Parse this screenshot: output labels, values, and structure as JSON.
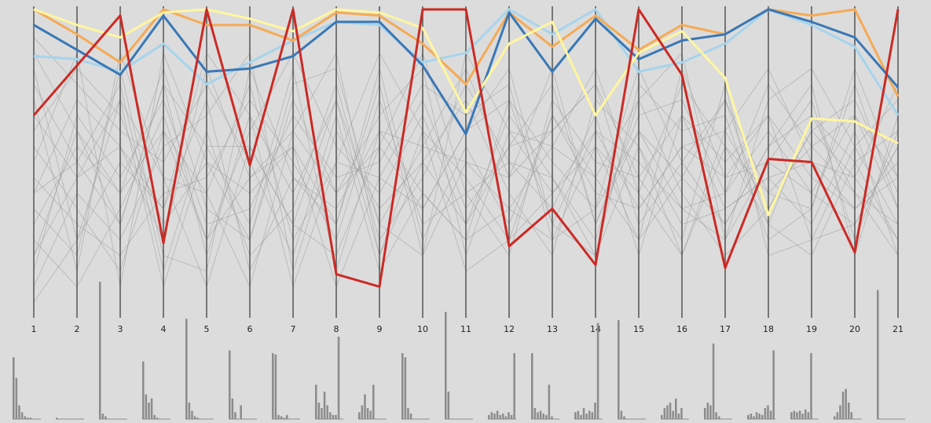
{
  "chart_data": {
    "type": "parallel",
    "categories": [
      "1",
      "2",
      "3",
      "4",
      "5",
      "6",
      "7",
      "8",
      "9",
      "10",
      "11",
      "12",
      "13",
      "14",
      "15",
      "16",
      "17",
      "18",
      "19",
      "20",
      "21"
    ],
    "ylim": [
      0,
      100
    ],
    "background_series": {
      "color": "#9a9a9a",
      "lines": [
        [
          20,
          45,
          70,
          10,
          55,
          30,
          80,
          15,
          60,
          40,
          25,
          70,
          50,
          35,
          60,
          45,
          30,
          55,
          65,
          40,
          30
        ],
        [
          85,
          60,
          30,
          75,
          20,
          65,
          40,
          70,
          30,
          55,
          80,
          45,
          60,
          75,
          30,
          50,
          70,
          40,
          55,
          65,
          45
        ],
        [
          5,
          25,
          50,
          35,
          70,
          15,
          45,
          30,
          75,
          20,
          50,
          35,
          25,
          55,
          40,
          20,
          55,
          30,
          20,
          50,
          25
        ],
        [
          55,
          35,
          15,
          60,
          40,
          75,
          25,
          50,
          45,
          70,
          35,
          55,
          75,
          30,
          65,
          70,
          40,
          60,
          40,
          30,
          55
        ],
        [
          40,
          70,
          55,
          25,
          80,
          45,
          60,
          85,
          20,
          60,
          45,
          25,
          40,
          60,
          50,
          35,
          25,
          70,
          80,
          55,
          70
        ],
        [
          70,
          15,
          85,
          45,
          10,
          55,
          30,
          20,
          55,
          35,
          60,
          80,
          30,
          20,
          75,
          60,
          65,
          25,
          35,
          75,
          35
        ],
        [
          30,
          55,
          40,
          80,
          35,
          25,
          70,
          40,
          65,
          80,
          20,
          60,
          55,
          45,
          25,
          80,
          45,
          50,
          70,
          25,
          60
        ],
        [
          10,
          40,
          25,
          55,
          65,
          85,
          15,
          60,
          35,
          50,
          70,
          40,
          20,
          70,
          55,
          30,
          35,
          45,
          30,
          60,
          20
        ],
        [
          60,
          80,
          65,
          30,
          50,
          40,
          55,
          30,
          80,
          25,
          55,
          30,
          65,
          40,
          35,
          55,
          60,
          80,
          50,
          45,
          75
        ],
        [
          25,
          10,
          35,
          65,
          25,
          60,
          85,
          55,
          40,
          65,
          30,
          65,
          45,
          25,
          70,
          40,
          20,
          35,
          60,
          70,
          40
        ],
        [
          75,
          50,
          75,
          15,
          60,
          20,
          35,
          75,
          25,
          45,
          75,
          50,
          35,
          65,
          20,
          65,
          50,
          65,
          45,
          35,
          50
        ],
        [
          45,
          30,
          20,
          40,
          45,
          70,
          50,
          25,
          70,
          30,
          40,
          20,
          70,
          50,
          45,
          25,
          75,
          20,
          25,
          55,
          30
        ],
        [
          15,
          65,
          45,
          70,
          30,
          35,
          65,
          45,
          50,
          75,
          65,
          75,
          25,
          35,
          80,
          50,
          30,
          55,
          75,
          20,
          65
        ],
        [
          90,
          75,
          60,
          50,
          75,
          50,
          20,
          65,
          15,
          40,
          25,
          35,
          55,
          80,
          40,
          75,
          55,
          40,
          35,
          80,
          45
        ],
        [
          35,
          20,
          80,
          20,
          15,
          80,
          45,
          35,
          60,
          55,
          50,
          45,
          80,
          30,
          60,
          35,
          40,
          75,
          55,
          40,
          20
        ],
        [
          50,
          85,
          10,
          85,
          50,
          25,
          75,
          80,
          30,
          20,
          85,
          60,
          40,
          55,
          25,
          45,
          70,
          30,
          65,
          50,
          60
        ],
        [
          65,
          45,
          55,
          35,
          85,
          65,
          10,
          50,
          85,
          60,
          15,
          25,
          65,
          45,
          70,
          85,
          25,
          50,
          40,
          65,
          35
        ],
        [
          20,
          60,
          40,
          60,
          25,
          45,
          55,
          10,
          45,
          35,
          60,
          70,
          30,
          60,
          35,
          55,
          45,
          65,
          25,
          30,
          55
        ],
        [
          80,
          25,
          70,
          45,
          40,
          10,
          60,
          40,
          55,
          85,
          40,
          50,
          45,
          20,
          55,
          20,
          60,
          35,
          60,
          45,
          25
        ],
        [
          40,
          50,
          30,
          75,
          55,
          55,
          30,
          70,
          20,
          50,
          30,
          55,
          60,
          75,
          45,
          65,
          35,
          45,
          50,
          35,
          45
        ]
      ]
    },
    "series": [
      {
        "color": "#a6d4ec",
        "values": [
          84,
          83,
          79,
          88,
          75,
          82,
          89,
          95,
          94,
          82,
          85,
          99,
          91,
          99,
          79,
          82,
          88,
          99,
          94,
          87,
          65
        ]
      },
      {
        "color": "#f5aa55",
        "values": [
          99,
          91,
          82,
          99,
          94,
          94,
          89,
          98,
          97,
          88,
          75,
          98,
          87,
          97,
          86,
          94,
          91,
          99,
          97,
          99,
          71
        ]
      },
      {
        "color": "#3a78b5",
        "values": [
          94,
          86,
          78,
          97,
          79,
          80,
          84,
          95,
          95,
          81,
          59,
          98,
          79,
          96,
          83,
          89,
          91,
          99,
          95,
          90,
          74
        ]
      },
      {
        "color": "#fff6a0",
        "values": [
          99,
          94,
          90,
          98,
          99,
          96,
          92,
          99,
          98,
          93,
          66,
          88,
          95,
          65,
          85,
          92,
          77,
          33,
          64,
          63,
          56
        ]
      },
      {
        "color": "#cc2a25",
        "values": [
          65,
          81,
          97,
          24,
          99,
          49,
          99,
          14,
          10,
          99,
          99,
          23,
          35,
          17,
          99,
          78,
          16,
          51,
          50,
          21,
          99
        ]
      }
    ],
    "hist_ylim": [
      0,
      100
    ],
    "hist_color": "#8c8c8c",
    "histograms": [
      [
        45,
        30,
        10,
        5,
        2,
        1,
        1,
        0,
        0,
        0
      ],
      [
        1,
        0,
        0,
        0,
        0,
        0,
        0,
        0,
        0,
        0
      ],
      [
        100,
        4,
        2,
        0,
        0,
        0,
        0,
        0,
        0,
        0
      ],
      [
        42,
        18,
        12,
        15,
        3,
        1,
        0,
        0,
        0,
        0
      ],
      [
        73,
        12,
        6,
        2,
        1,
        0,
        0,
        0,
        0,
        0
      ],
      [
        50,
        15,
        5,
        0,
        10,
        0,
        0,
        0,
        0,
        0
      ],
      [
        48,
        47,
        3,
        2,
        1,
        3,
        0,
        0,
        0,
        0
      ],
      [
        25,
        12,
        8,
        20,
        10,
        5,
        3,
        3,
        60,
        0
      ],
      [
        5,
        10,
        18,
        8,
        6,
        25,
        0,
        0,
        0,
        0
      ],
      [
        48,
        45,
        8,
        4,
        0,
        0,
        0,
        0,
        0,
        0
      ],
      [
        78,
        20,
        0,
        0,
        0,
        0,
        0,
        0,
        0,
        0
      ],
      [
        3,
        5,
        4,
        6,
        3,
        4,
        2,
        5,
        3,
        48
      ],
      [
        48,
        8,
        5,
        6,
        4,
        3,
        25,
        2,
        0,
        0
      ],
      [
        5,
        6,
        3,
        8,
        4,
        6,
        5,
        12,
        70,
        0
      ],
      [
        72,
        6,
        2,
        0,
        0,
        0,
        0,
        0,
        0,
        0
      ],
      [
        3,
        8,
        10,
        12,
        6,
        15,
        4,
        8,
        0,
        0
      ],
      [
        8,
        12,
        10,
        55,
        5,
        2,
        0,
        0,
        0,
        0
      ],
      [
        3,
        4,
        2,
        5,
        4,
        3,
        8,
        10,
        6,
        50
      ],
      [
        5,
        6,
        5,
        6,
        4,
        7,
        5,
        48,
        0,
        0
      ],
      [
        2,
        5,
        10,
        20,
        22,
        12,
        5,
        0,
        0,
        0
      ],
      [
        94,
        0,
        0,
        0,
        0,
        0,
        0,
        0,
        0,
        0
      ]
    ]
  }
}
